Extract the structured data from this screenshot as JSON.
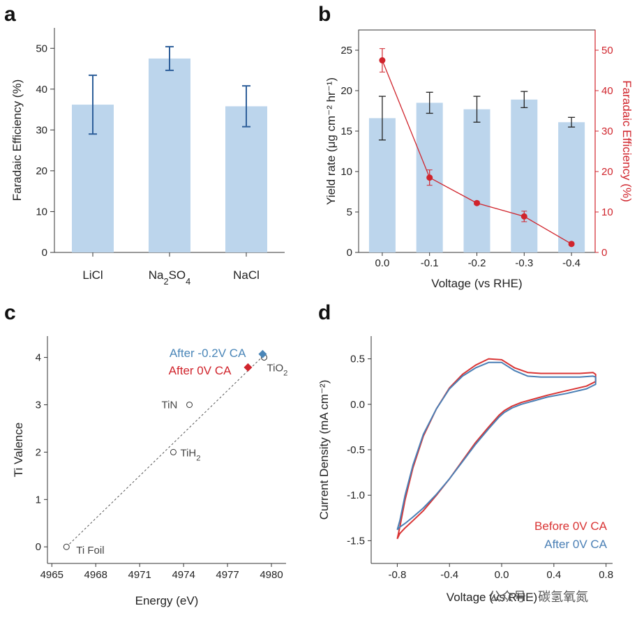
{
  "panels": {
    "a": "a",
    "b": "b",
    "c": "c",
    "d": "d"
  },
  "watermark": "公众号 · 碳氢氧氮",
  "colors": {
    "bar": "#bcd5ec",
    "errorbar_a": "#2e5f9a",
    "errorbar_b": "#222222",
    "fe_red": "#d0242c",
    "blue_marker": "#4a86b8",
    "red_marker": "#d0242c",
    "cv_red": "#d93434",
    "cv_blue": "#4a7fb5"
  },
  "chart_data": [
    {
      "id": "a",
      "type": "bar",
      "categories": [
        "LiCl",
        "Na2SO4",
        "NaCl"
      ],
      "values": [
        36.2,
        47.5,
        35.8
      ],
      "errors": [
        7.2,
        2.9,
        5.0
      ],
      "title": "",
      "xlabel": "",
      "ylabel": "Faradaic Efficiency (%)",
      "ylim": [
        0,
        55
      ],
      "yticks": [
        0,
        10,
        20,
        30,
        40,
        50
      ]
    },
    {
      "id": "b",
      "type": "bar+line",
      "categories": [
        "0.0",
        "-0.1",
        "-0.2",
        "-0.3",
        "-0.4"
      ],
      "xlabel": "Voltage (vs RHE)",
      "series": [
        {
          "name": "Yield rate",
          "axis": "left",
          "kind": "bar",
          "values": [
            16.6,
            18.5,
            17.7,
            18.9,
            16.1
          ],
          "errors": [
            2.7,
            1.3,
            1.6,
            1.0,
            0.6
          ]
        },
        {
          "name": "Faradaic Efficiency",
          "axis": "right",
          "kind": "line",
          "values": [
            47.5,
            18.5,
            12.2,
            8.9,
            2.1
          ],
          "errors": [
            2.9,
            1.9,
            0.4,
            1.3,
            0.3
          ]
        }
      ],
      "ylabel_left": "Yield rate (μg cm⁻² hr⁻¹)",
      "ylabel_right": "Faradaic Efficiency (%)",
      "ylim_left": [
        0,
        27.5
      ],
      "ylim_right": [
        0,
        55
      ],
      "yticks_left": [
        0,
        5,
        10,
        15,
        20,
        25
      ],
      "yticks_right": [
        0,
        10,
        20,
        30,
        40,
        50
      ]
    },
    {
      "id": "c",
      "type": "scatter",
      "xlabel": "Energy (eV)",
      "ylabel": "Ti Valence",
      "xlim": [
        4964.7,
        4981.0
      ],
      "ylim": [
        -0.35,
        4.45
      ],
      "xticks": [
        4965,
        4968,
        4971,
        4974,
        4977,
        4980
      ],
      "yticks": [
        0,
        1,
        2,
        3,
        4
      ],
      "references": [
        {
          "label": "Ti Foil",
          "x": 4966.0,
          "y": 0
        },
        {
          "label": "TiH2",
          "x": 4973.3,
          "y": 2
        },
        {
          "label": "TiN",
          "x": 4974.4,
          "y": 3
        },
        {
          "label": "TiO2",
          "x": 4979.5,
          "y": 4
        }
      ],
      "fit_line": [
        [
          4966.0,
          0
        ],
        [
          4979.5,
          4.05
        ]
      ],
      "samples": [
        {
          "label": "After -0.2V CA",
          "x": 4979.4,
          "y": 4.07,
          "color": "#4a86b8"
        },
        {
          "label": "After 0V CA",
          "x": 4978.4,
          "y": 3.79,
          "color": "#d0242c"
        }
      ]
    },
    {
      "id": "d",
      "type": "line",
      "xlabel": "Voltage (vs RHE)",
      "ylabel": "Current Density (mA cm⁻²)",
      "xlim": [
        -1.0,
        0.85
      ],
      "ylim": [
        -1.75,
        0.75
      ],
      "xticks": [
        -0.8,
        -0.4,
        0.0,
        0.4,
        0.8
      ],
      "yticks": [
        -1.5,
        -1.0,
        -0.5,
        0.0,
        0.5
      ],
      "series": [
        {
          "name": "Before 0V CA",
          "color": "#d93434",
          "x": [
            -0.8,
            -0.78,
            -0.74,
            -0.68,
            -0.6,
            -0.5,
            -0.4,
            -0.3,
            -0.2,
            -0.1,
            0.0,
            0.1,
            0.2,
            0.3,
            0.4,
            0.5,
            0.6,
            0.7,
            0.72,
            0.72,
            0.65,
            0.5,
            0.35,
            0.25,
            0.15,
            0.08,
            0.02,
            -0.02,
            -0.1,
            -0.2,
            -0.3,
            -0.4,
            -0.5,
            -0.6,
            -0.68,
            -0.74,
            -0.78,
            -0.8
          ],
          "y": [
            -1.48,
            -1.35,
            -1.05,
            -0.7,
            -0.35,
            -0.05,
            0.18,
            0.33,
            0.43,
            0.5,
            0.49,
            0.4,
            0.35,
            0.34,
            0.34,
            0.34,
            0.34,
            0.35,
            0.33,
            0.25,
            0.2,
            0.15,
            0.1,
            0.06,
            0.02,
            -0.02,
            -0.07,
            -0.12,
            -0.25,
            -0.42,
            -0.62,
            -0.82,
            -1.0,
            -1.17,
            -1.28,
            -1.36,
            -1.42,
            -1.48
          ]
        },
        {
          "name": "After 0V CA",
          "color": "#4a7fb5",
          "x": [
            -0.8,
            -0.78,
            -0.74,
            -0.68,
            -0.6,
            -0.5,
            -0.4,
            -0.3,
            -0.2,
            -0.1,
            0.0,
            0.1,
            0.2,
            0.3,
            0.4,
            0.5,
            0.6,
            0.7,
            0.72,
            0.72,
            0.65,
            0.5,
            0.35,
            0.25,
            0.15,
            0.08,
            0.02,
            -0.02,
            -0.1,
            -0.2,
            -0.3,
            -0.4,
            -0.5,
            -0.6,
            -0.68,
            -0.74,
            -0.78,
            -0.8
          ],
          "y": [
            -1.38,
            -1.28,
            -1.0,
            -0.67,
            -0.33,
            -0.05,
            0.17,
            0.31,
            0.4,
            0.46,
            0.46,
            0.37,
            0.31,
            0.3,
            0.3,
            0.3,
            0.3,
            0.31,
            0.3,
            0.22,
            0.17,
            0.12,
            0.08,
            0.04,
            0.0,
            -0.04,
            -0.09,
            -0.14,
            -0.27,
            -0.44,
            -0.63,
            -0.82,
            -0.99,
            -1.14,
            -1.24,
            -1.31,
            -1.35,
            -1.38
          ]
        }
      ],
      "legend": [
        "Before 0V CA",
        "After 0V CA"
      ],
      "legend_position": "bottom-right"
    }
  ]
}
